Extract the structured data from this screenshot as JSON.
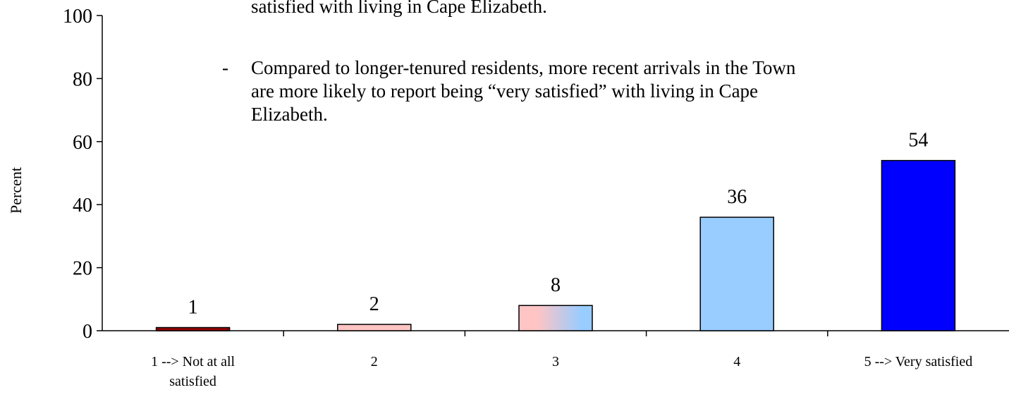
{
  "chart_data": {
    "type": "bar",
    "y_label": "Percent",
    "categories": [
      "1 --> Not at all satisfied",
      "2",
      "3",
      "4",
      "5 --> Very satisfied"
    ],
    "values": [
      1,
      2,
      8,
      36,
      54
    ],
    "colors": [
      "#990000",
      "#ffc4c4",
      [
        "#ffc4c4",
        "#99ccff"
      ],
      "#99ccff",
      "#0000ff"
    ],
    "ylim": [
      0,
      100
    ],
    "yticks": [
      0,
      20,
      40,
      60,
      80,
      100
    ],
    "annotations": {
      "clipped_line": "satisfied with living in Cape Elizabeth.",
      "bullet": "-",
      "lines": [
        "Compared to longer-tenured residents, more recent arrivals in the Town",
        "are more likely to report being “very satisfied” with living in Cape",
        "Elizabeth."
      ]
    }
  }
}
